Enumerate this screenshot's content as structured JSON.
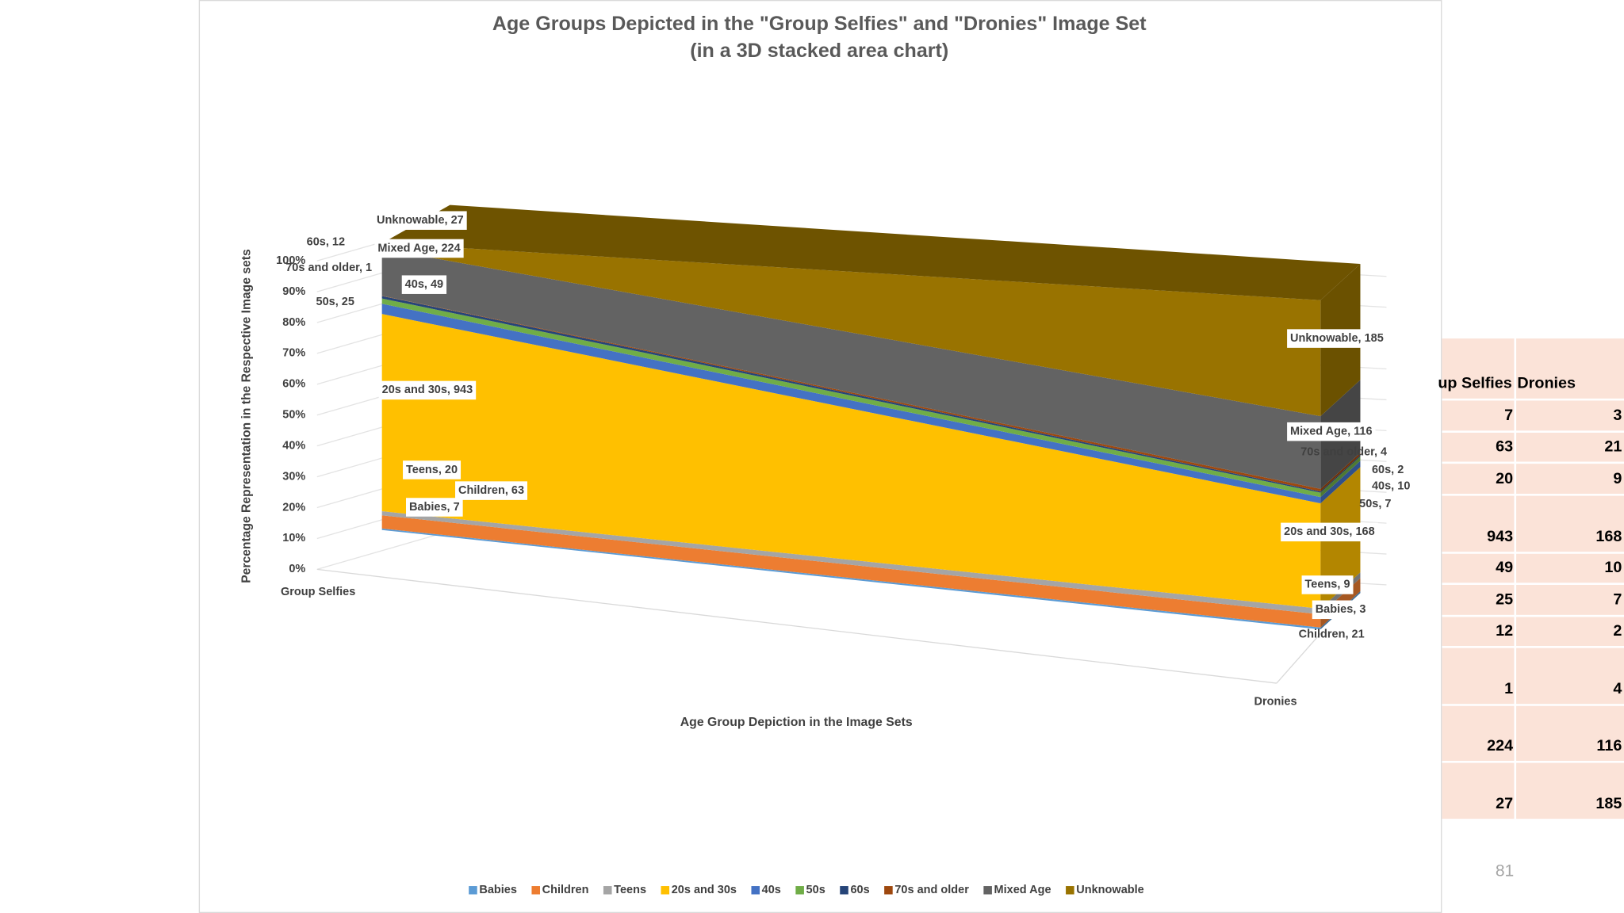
{
  "chart_data": {
    "type": "area",
    "stacking": "percent",
    "title": "Age Groups Depicted in the \"Group Selfies\" and \"Dronies\" Image Set",
    "subtitle": "(in a 3D stacked area chart)",
    "x_label": "Age Group Depiction in the Image Sets",
    "y_label": "Percentage Representation in the Respective Image sets",
    "categories": [
      "Group Selfies",
      "Dronies"
    ],
    "ylim": [
      0,
      100
    ],
    "yticks": [
      {
        "value": 0,
        "label": "0%"
      },
      {
        "value": 10,
        "label": "10%"
      },
      {
        "value": 20,
        "label": "20%"
      },
      {
        "value": 30,
        "label": "30%"
      },
      {
        "value": 40,
        "label": "40%"
      },
      {
        "value": 50,
        "label": "50%"
      },
      {
        "value": 60,
        "label": "60%"
      },
      {
        "value": 70,
        "label": "70%"
      },
      {
        "value": 80,
        "label": "80%"
      },
      {
        "value": 90,
        "label": "90%"
      },
      {
        "value": 100,
        "label": "100%"
      }
    ],
    "legend": "bottom",
    "series": [
      {
        "name": "Babies",
        "color": "#5b9bd5",
        "values": [
          7,
          3
        ],
        "value_labels": [
          "Babies, 7",
          "Babies, 3"
        ]
      },
      {
        "name": "Children",
        "color": "#ed7d31",
        "values": [
          63,
          21
        ],
        "value_labels": [
          "Children, 63",
          "Children, 21"
        ]
      },
      {
        "name": "Teens",
        "color": "#a5a5a5",
        "values": [
          20,
          9
        ],
        "value_labels": [
          "Teens, 20",
          "Teens, 9"
        ]
      },
      {
        "name": "20s and 30s",
        "color": "#ffc000",
        "values": [
          943,
          168
        ],
        "value_labels": [
          "20s and 30s, 943",
          "20s and 30s, 168"
        ]
      },
      {
        "name": "40s",
        "color": "#4472c4",
        "values": [
          49,
          10
        ],
        "value_labels": [
          "40s, 49",
          "40s, 10"
        ]
      },
      {
        "name": "50s",
        "color": "#70ad47",
        "values": [
          25,
          7
        ],
        "value_labels": [
          "50s, 25",
          "50s, 7"
        ]
      },
      {
        "name": "60s",
        "color": "#264478",
        "values": [
          12,
          2
        ],
        "value_labels": [
          "60s, 12",
          "60s, 2"
        ]
      },
      {
        "name": "70s and older",
        "color": "#9e480e",
        "values": [
          1,
          4
        ],
        "value_labels": [
          "70s and older, 1",
          "70s and older, 4"
        ]
      },
      {
        "name": "Mixed Age",
        "color": "#636363",
        "values": [
          224,
          116
        ],
        "value_labels": [
          "Mixed Age, 224",
          "Mixed Age, 116"
        ]
      },
      {
        "name": "Unknowable",
        "color": "#997300",
        "values": [
          27,
          185
        ],
        "value_labels": [
          "Unknowable, 27",
          "Unknowable, 185"
        ]
      }
    ]
  },
  "table": {
    "header": [
      "up Selfies",
      "Dronies"
    ],
    "rows": [
      [
        7,
        3
      ],
      [
        63,
        21
      ],
      [
        20,
        9
      ],
      [
        943,
        168
      ],
      [
        49,
        10
      ],
      [
        25,
        7
      ],
      [
        12,
        2
      ],
      [
        1,
        4
      ],
      [
        224,
        116
      ],
      [
        27,
        185
      ]
    ]
  },
  "page_number": "81"
}
